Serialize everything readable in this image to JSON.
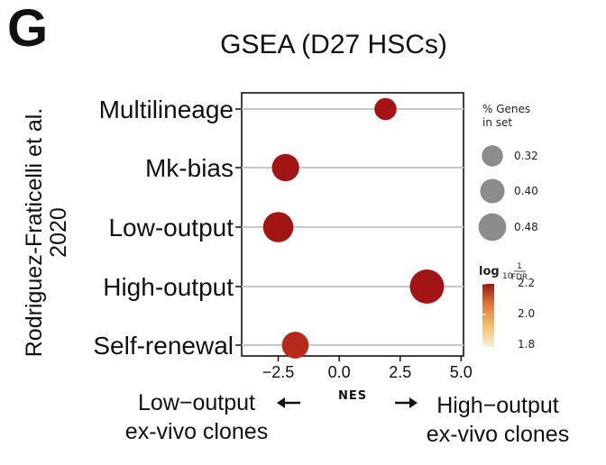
{
  "panel_letter": "G",
  "chart_data": {
    "type": "scatter",
    "title": "GSEA (D27 HSCs)",
    "ylabel": "Rodriguez-Fraticelli et al. 2020",
    "ylabel_lines": [
      "Rodriguez-Fraticelli et al.",
      "2020"
    ],
    "xlabel": "NES",
    "categories": [
      "Multilineage",
      "Mk-bias",
      "Low-output",
      "High-output",
      "Self-renewal"
    ],
    "x_ticks": [
      -2.5,
      0.0,
      2.5,
      5.0
    ],
    "x_tick_labels": [
      "−2.5",
      "0.0",
      "2.5",
      "5.0"
    ],
    "xlim": [
      -4.0,
      5.1
    ],
    "points": [
      {
        "category": "Multilineage",
        "nes": 1.9,
        "pct_genes": 0.29,
        "log10_inv_fdr": 2.2
      },
      {
        "category": "Mk-bias",
        "nes": -2.2,
        "pct_genes": 0.38,
        "log10_inv_fdr": 2.2
      },
      {
        "category": "Low-output",
        "nes": -2.5,
        "pct_genes": 0.43,
        "log10_inv_fdr": 2.2
      },
      {
        "category": "High-output",
        "nes": 3.6,
        "pct_genes": 0.5,
        "log10_inv_fdr": 2.2
      },
      {
        "category": "Self-renewal",
        "nes": -1.8,
        "pct_genes": 0.37,
        "log10_inv_fdr": 2.15
      }
    ],
    "size_legend": {
      "title_lines": [
        "% Genes",
        "in set"
      ],
      "values": [
        0.32,
        0.4,
        0.48
      ],
      "labels": [
        "0.32",
        "0.40",
        "0.48"
      ]
    },
    "color_legend": {
      "title_main": "log",
      "title_sub": "10",
      "fraction_num": "1",
      "fraction_den": "FDR",
      "range": [
        1.8,
        2.2
      ],
      "ticks": [
        "2.2",
        "2.0",
        "1.8"
      ],
      "colors": [
        "#f7f0d8",
        "#f5c06a",
        "#e07a3a",
        "#a01818"
      ]
    },
    "grid": "horizontal",
    "legend_placement": "right"
  },
  "direction_labels": {
    "left_lines": [
      "Low−output",
      "ex-vivo clones"
    ],
    "right_lines": [
      "High−output",
      "ex-vivo clones"
    ]
  },
  "colors": {
    "point_fill": "#a31515",
    "point_fill_light": "#b52a1a",
    "gridline": "#c8c8c8",
    "legend_circle": "#8c8c8c"
  }
}
